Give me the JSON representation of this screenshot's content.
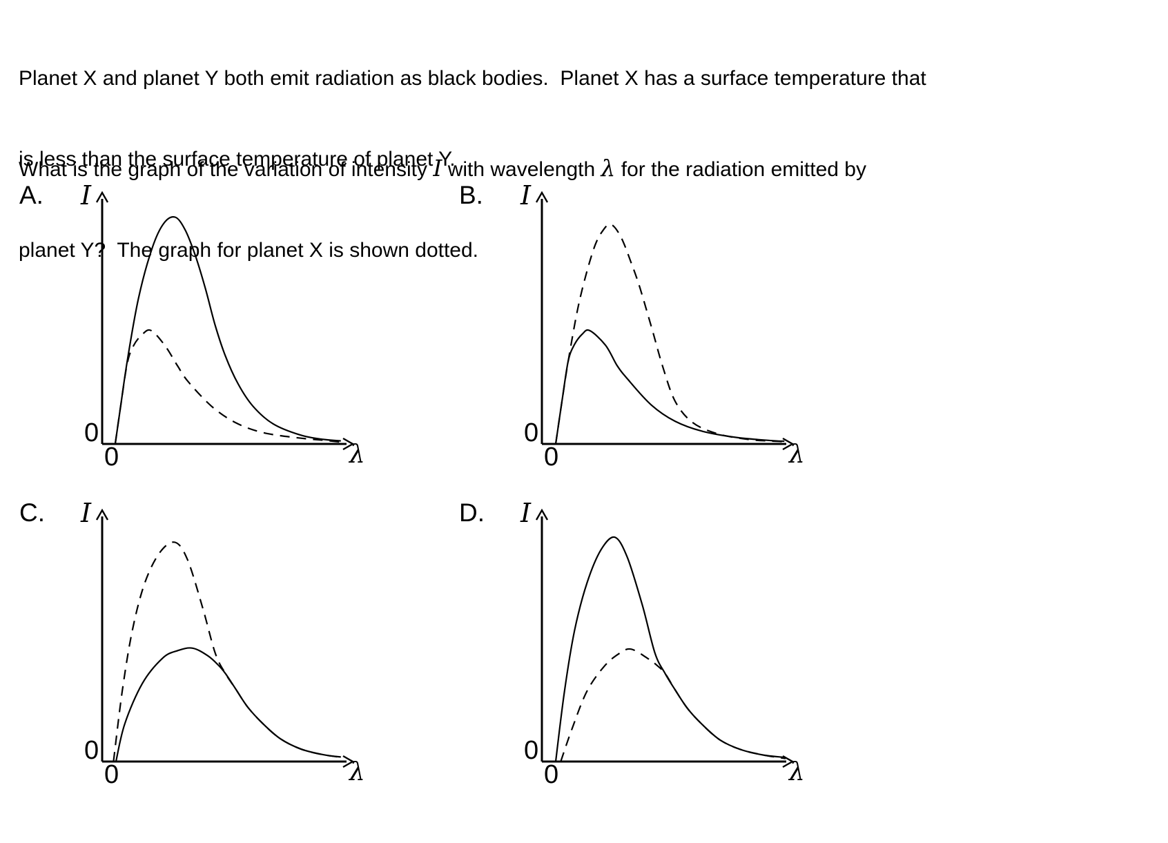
{
  "question": {
    "line1": "Planet X and planet Y both emit radiation as black bodies.  Planet X has a surface temperature that",
    "line2": "is less than the surface temperature of planet Y.",
    "line3": {
      "pre": "What is the graph of the variation of intensity ",
      "intensity_symbol": "I",
      "mid": " with wavelength ",
      "wavelength_symbol": "λ",
      "post": " for the radiation emitted by"
    },
    "line4": "planet Y?  The graph for planet X is shown dotted."
  },
  "chart_data": [
    {
      "option_label": "A.",
      "type": "line",
      "ylabel": "I",
      "xlabel": "λ",
      "y_origin_label": "0",
      "x_origin_label": "0",
      "axis_ranges": "qualitative, both axes start at 0, no tick values",
      "series": [
        {
          "name": "candidate planet Y curve",
          "style": "solid",
          "peak": {
            "x_frac": 0.29,
            "i_frac": 0.9
          },
          "points": [
            [
              0.052,
              0
            ],
            [
              0.075,
              0.16
            ],
            [
              0.1,
              0.33
            ],
            [
              0.145,
              0.58
            ],
            [
              0.2,
              0.78
            ],
            [
              0.245,
              0.875
            ],
            [
              0.29,
              0.9
            ],
            [
              0.33,
              0.85
            ],
            [
              0.37,
              0.75
            ],
            [
              0.41,
              0.62
            ],
            [
              0.45,
              0.47
            ],
            [
              0.49,
              0.35
            ],
            [
              0.54,
              0.24
            ],
            [
              0.6,
              0.15
            ],
            [
              0.68,
              0.08
            ],
            [
              0.79,
              0.035
            ],
            [
              0.88,
              0.018
            ],
            [
              0.95,
              0.012
            ]
          ]
        },
        {
          "name": "planet X curve (dotted)",
          "style": "dashed",
          "peak": {
            "x_frac": 0.2,
            "i_frac": 0.45
          },
          "points": [
            [
              0.052,
              0
            ],
            [
              0.075,
              0.16
            ],
            [
              0.1,
              0.32
            ],
            [
              0.125,
              0.39
            ],
            [
              0.16,
              0.435
            ],
            [
              0.195,
              0.45
            ],
            [
              0.25,
              0.39
            ],
            [
              0.3,
              0.31
            ],
            [
              0.34,
              0.25
            ],
            [
              0.435,
              0.15
            ],
            [
              0.53,
              0.085
            ],
            [
              0.64,
              0.045
            ],
            [
              0.78,
              0.024
            ],
            [
              0.9,
              0.013
            ],
            [
              0.96,
              0.006
            ]
          ]
        }
      ]
    },
    {
      "option_label": "B.",
      "type": "line",
      "ylabel": "I",
      "xlabel": "λ",
      "y_origin_label": "0",
      "x_origin_label": "0",
      "axis_ranges": "qualitative, both axes start at 0, no tick values",
      "series": [
        {
          "name": "candidate planet Y curve",
          "style": "solid",
          "peak": {
            "x_frac": 0.19,
            "i_frac": 0.45
          },
          "points": [
            [
              0.055,
              0
            ],
            [
              0.08,
              0.17
            ],
            [
              0.105,
              0.33
            ],
            [
              0.13,
              0.395
            ],
            [
              0.16,
              0.435
            ],
            [
              0.19,
              0.45
            ],
            [
              0.253,
              0.392
            ],
            [
              0.3,
              0.31
            ],
            [
              0.343,
              0.255
            ],
            [
              0.435,
              0.155
            ],
            [
              0.53,
              0.09
            ],
            [
              0.64,
              0.05
            ],
            [
              0.78,
              0.025
            ],
            [
              0.92,
              0.013
            ],
            [
              0.965,
              0.011
            ]
          ]
        },
        {
          "name": "planet X curve (dotted)",
          "style": "dashed",
          "peak": {
            "x_frac": 0.277,
            "i_frac": 0.87
          },
          "points": [
            [
              0.055,
              0
            ],
            [
              0.08,
              0.17
            ],
            [
              0.105,
              0.33
            ],
            [
              0.15,
              0.57
            ],
            [
              0.205,
              0.77
            ],
            [
              0.245,
              0.85
            ],
            [
              0.277,
              0.87
            ],
            [
              0.315,
              0.82
            ],
            [
              0.355,
              0.72
            ],
            [
              0.39,
              0.62
            ],
            [
              0.44,
              0.45
            ],
            [
              0.48,
              0.31
            ],
            [
              0.53,
              0.17
            ],
            [
              0.6,
              0.085
            ],
            [
              0.7,
              0.04
            ],
            [
              0.82,
              0.018
            ],
            [
              0.9,
              0.012
            ],
            [
              0.97,
              0.009
            ]
          ]
        }
      ]
    },
    {
      "option_label": "C.",
      "type": "line",
      "ylabel": "I",
      "xlabel": "λ",
      "y_origin_label": "0",
      "x_origin_label": "0",
      "axis_ranges": "qualitative, both axes start at 0, no tick values",
      "series": [
        {
          "name": "candidate planet Y curve",
          "style": "solid",
          "peak": {
            "x_frac": 0.36,
            "i_frac": 0.45
          },
          "points": [
            [
              0.055,
              0
            ],
            [
              0.09,
              0.15
            ],
            [
              0.16,
              0.31
            ],
            [
              0.24,
              0.41
            ],
            [
              0.3,
              0.44
            ],
            [
              0.36,
              0.45
            ],
            [
              0.42,
              0.42
            ],
            [
              0.46,
              0.385
            ],
            [
              0.49,
              0.35
            ],
            [
              0.53,
              0.29
            ],
            [
              0.58,
              0.215
            ],
            [
              0.64,
              0.15
            ],
            [
              0.71,
              0.09
            ],
            [
              0.79,
              0.05
            ],
            [
              0.88,
              0.027
            ],
            [
              0.95,
              0.018
            ]
          ]
        },
        {
          "name": "planet X curve (dotted)",
          "style": "dashed",
          "peak": {
            "x_frac": 0.29,
            "i_frac": 0.87
          },
          "points": [
            [
              0.045,
              0
            ],
            [
              0.08,
              0.28
            ],
            [
              0.12,
              0.52
            ],
            [
              0.17,
              0.71
            ],
            [
              0.23,
              0.83
            ],
            [
              0.29,
              0.87
            ],
            [
              0.34,
              0.8
            ],
            [
              0.4,
              0.61
            ],
            [
              0.45,
              0.43
            ],
            [
              0.49,
              0.35
            ],
            [
              0.53,
              0.29
            ],
            [
              0.58,
              0.215
            ],
            [
              0.64,
              0.15
            ],
            [
              0.71,
              0.09
            ],
            [
              0.79,
              0.05
            ],
            [
              0.88,
              0.027
            ],
            [
              0.96,
              0.016
            ]
          ]
        }
      ]
    },
    {
      "option_label": "D.",
      "type": "line",
      "ylabel": "I",
      "xlabel": "λ",
      "y_origin_label": "0",
      "x_origin_label": "0",
      "axis_ranges": "qualitative, both axes start at 0, no tick values",
      "series": [
        {
          "name": "candidate planet Y curve",
          "style": "solid",
          "peak": {
            "x_frac": 0.29,
            "i_frac": 0.89
          },
          "points": [
            [
              0.055,
              0
            ],
            [
              0.09,
              0.28
            ],
            [
              0.13,
              0.52
            ],
            [
              0.18,
              0.71
            ],
            [
              0.235,
              0.84
            ],
            [
              0.29,
              0.89
            ],
            [
              0.34,
              0.81
            ],
            [
              0.4,
              0.62
            ],
            [
              0.45,
              0.43
            ],
            [
              0.49,
              0.35
            ],
            [
              0.53,
              0.285
            ],
            [
              0.58,
              0.21
            ],
            [
              0.64,
              0.145
            ],
            [
              0.71,
              0.085
            ],
            [
              0.79,
              0.048
            ],
            [
              0.88,
              0.026
            ],
            [
              0.96,
              0.017
            ]
          ]
        },
        {
          "name": "planet X curve (dotted)",
          "style": "dashed",
          "peak": {
            "x_frac": 0.355,
            "i_frac": 0.446
          },
          "points": [
            [
              0.075,
              0
            ],
            [
              0.12,
              0.13
            ],
            [
              0.18,
              0.28
            ],
            [
              0.25,
              0.38
            ],
            [
              0.31,
              0.43
            ],
            [
              0.355,
              0.446
            ],
            [
              0.42,
              0.41
            ],
            [
              0.46,
              0.38
            ],
            [
              0.49,
              0.35
            ],
            [
              0.53,
              0.285
            ],
            [
              0.58,
              0.21
            ],
            [
              0.64,
              0.145
            ],
            [
              0.71,
              0.085
            ],
            [
              0.79,
              0.048
            ],
            [
              0.88,
              0.026
            ],
            [
              0.97,
              0.012
            ]
          ]
        }
      ]
    }
  ]
}
